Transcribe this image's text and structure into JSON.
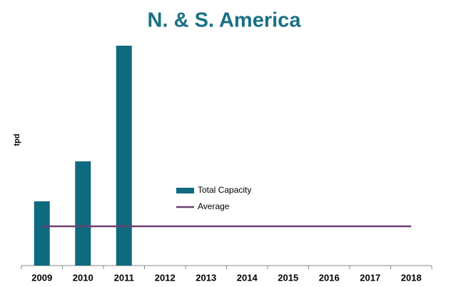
{
  "chart_data": {
    "type": "bar",
    "title": "N. & S. America",
    "y_label": "tpd",
    "categories": [
      "2009",
      "2010",
      "2011",
      "2012",
      "2013",
      "2014",
      "2015",
      "2016",
      "2017",
      "2018"
    ],
    "series": [
      {
        "name": "Total Capacity",
        "type": "bar",
        "color": "#0e6a7f",
        "values": [
          90,
          146,
          308,
          null,
          null,
          null,
          null,
          null,
          null,
          null
        ]
      },
      {
        "name": "Average",
        "type": "line",
        "color": "#6b3f72",
        "values": [
          55,
          55,
          55,
          55,
          55,
          55,
          55,
          55,
          55,
          55
        ]
      }
    ],
    "ylim": [
      0,
      310
    ]
  }
}
